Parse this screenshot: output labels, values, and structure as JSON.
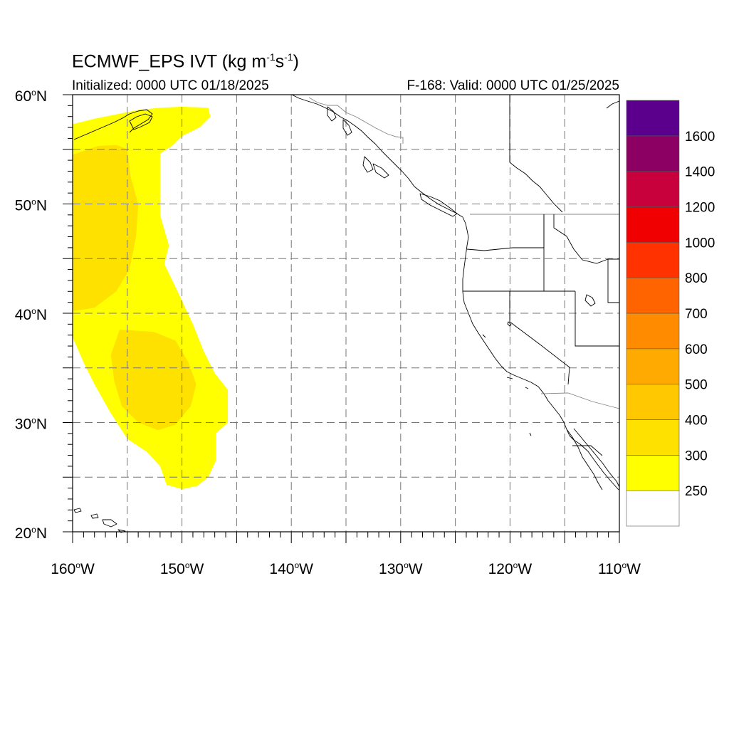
{
  "title": {
    "model": "ECMWF_EPS IVT",
    "units_open": "(kg m",
    "exp1": "-1",
    "mid": "s",
    "exp2": "-1",
    "close": ")"
  },
  "initialized": "Initialized: 0000 UTC 01/18/2025",
  "valid": "F-168: Valid: 0000 UTC 01/25/2025",
  "lat_labels": [
    "60",
    "50",
    "40",
    "30",
    "20"
  ],
  "lon_labels": [
    "160",
    "150",
    "140",
    "130",
    "120",
    "110"
  ],
  "lat_suffix": "N",
  "lon_suffix": "W",
  "degree": "o",
  "map_extent": {
    "lon_min": -160,
    "lon_max": -110,
    "lat_min": 20,
    "lat_max": 60
  },
  "colorbar": {
    "labels": [
      "1600",
      "1400",
      "1200",
      "1000",
      "800",
      "700",
      "600",
      "500",
      "400",
      "300",
      "250"
    ],
    "colors": [
      "#ffffff",
      "#ffff00",
      "#ffe100",
      "#ffc800",
      "#ffaa00",
      "#ff8c00",
      "#ff6400",
      "#ff3200",
      "#f00000",
      "#c8003c",
      "#8c0064",
      "#5a008c"
    ]
  },
  "ivt_field": {
    "region_250_300": [
      [
        -160,
        57.3
      ],
      [
        -158,
        57.8
      ],
      [
        -156,
        58.2
      ],
      [
        -154,
        58.6
      ],
      [
        -152,
        58.8
      ],
      [
        -150,
        58.9
      ],
      [
        -147.6,
        58.8
      ],
      [
        -147.4,
        58
      ],
      [
        -148.4,
        57
      ],
      [
        -150,
        56.2
      ],
      [
        -150.8,
        55.4
      ],
      [
        -152,
        54.6
      ],
      [
        -152,
        49
      ],
      [
        -151.2,
        46.2
      ],
      [
        -151.6,
        44.5
      ],
      [
        -150.4,
        42
      ],
      [
        -149,
        39
      ],
      [
        -148,
        36.5
      ],
      [
        -147,
        34.5
      ],
      [
        -145.8,
        33
      ],
      [
        -145.8,
        30
      ],
      [
        -146.9,
        29
      ],
      [
        -146.9,
        26.5
      ],
      [
        -147.6,
        25
      ],
      [
        -148.6,
        24.2
      ],
      [
        -150,
        23.9
      ],
      [
        -151.4,
        24.3
      ],
      [
        -152,
        26
      ],
      [
        -153.2,
        27.3
      ],
      [
        -155,
        28.5
      ],
      [
        -156.6,
        31
      ],
      [
        -158,
        33.5
      ],
      [
        -159,
        35.5
      ],
      [
        -160,
        37.8
      ]
    ],
    "region_300_400_north": [
      [
        -160,
        54.5
      ],
      [
        -157.7,
        55.3
      ],
      [
        -156,
        55.4
      ],
      [
        -155,
        55
      ],
      [
        -154.7,
        52.5
      ],
      [
        -154,
        50
      ],
      [
        -154.2,
        47
      ],
      [
        -154.8,
        44
      ],
      [
        -156,
        42
      ],
      [
        -158,
        40.5
      ],
      [
        -160,
        40.2
      ]
    ],
    "region_300_400_south": [
      [
        -155.7,
        38.5
      ],
      [
        -152.6,
        38.3
      ],
      [
        -150.6,
        37.5
      ],
      [
        -149.4,
        35.5
      ],
      [
        -148.7,
        33.5
      ],
      [
        -149.2,
        31.5
      ],
      [
        -150.6,
        29.8
      ],
      [
        -152.2,
        29.3
      ],
      [
        -154,
        30
      ],
      [
        -155.5,
        31.5
      ],
      [
        -156.2,
        33.8
      ],
      [
        -156.5,
        36.2
      ]
    ]
  }
}
